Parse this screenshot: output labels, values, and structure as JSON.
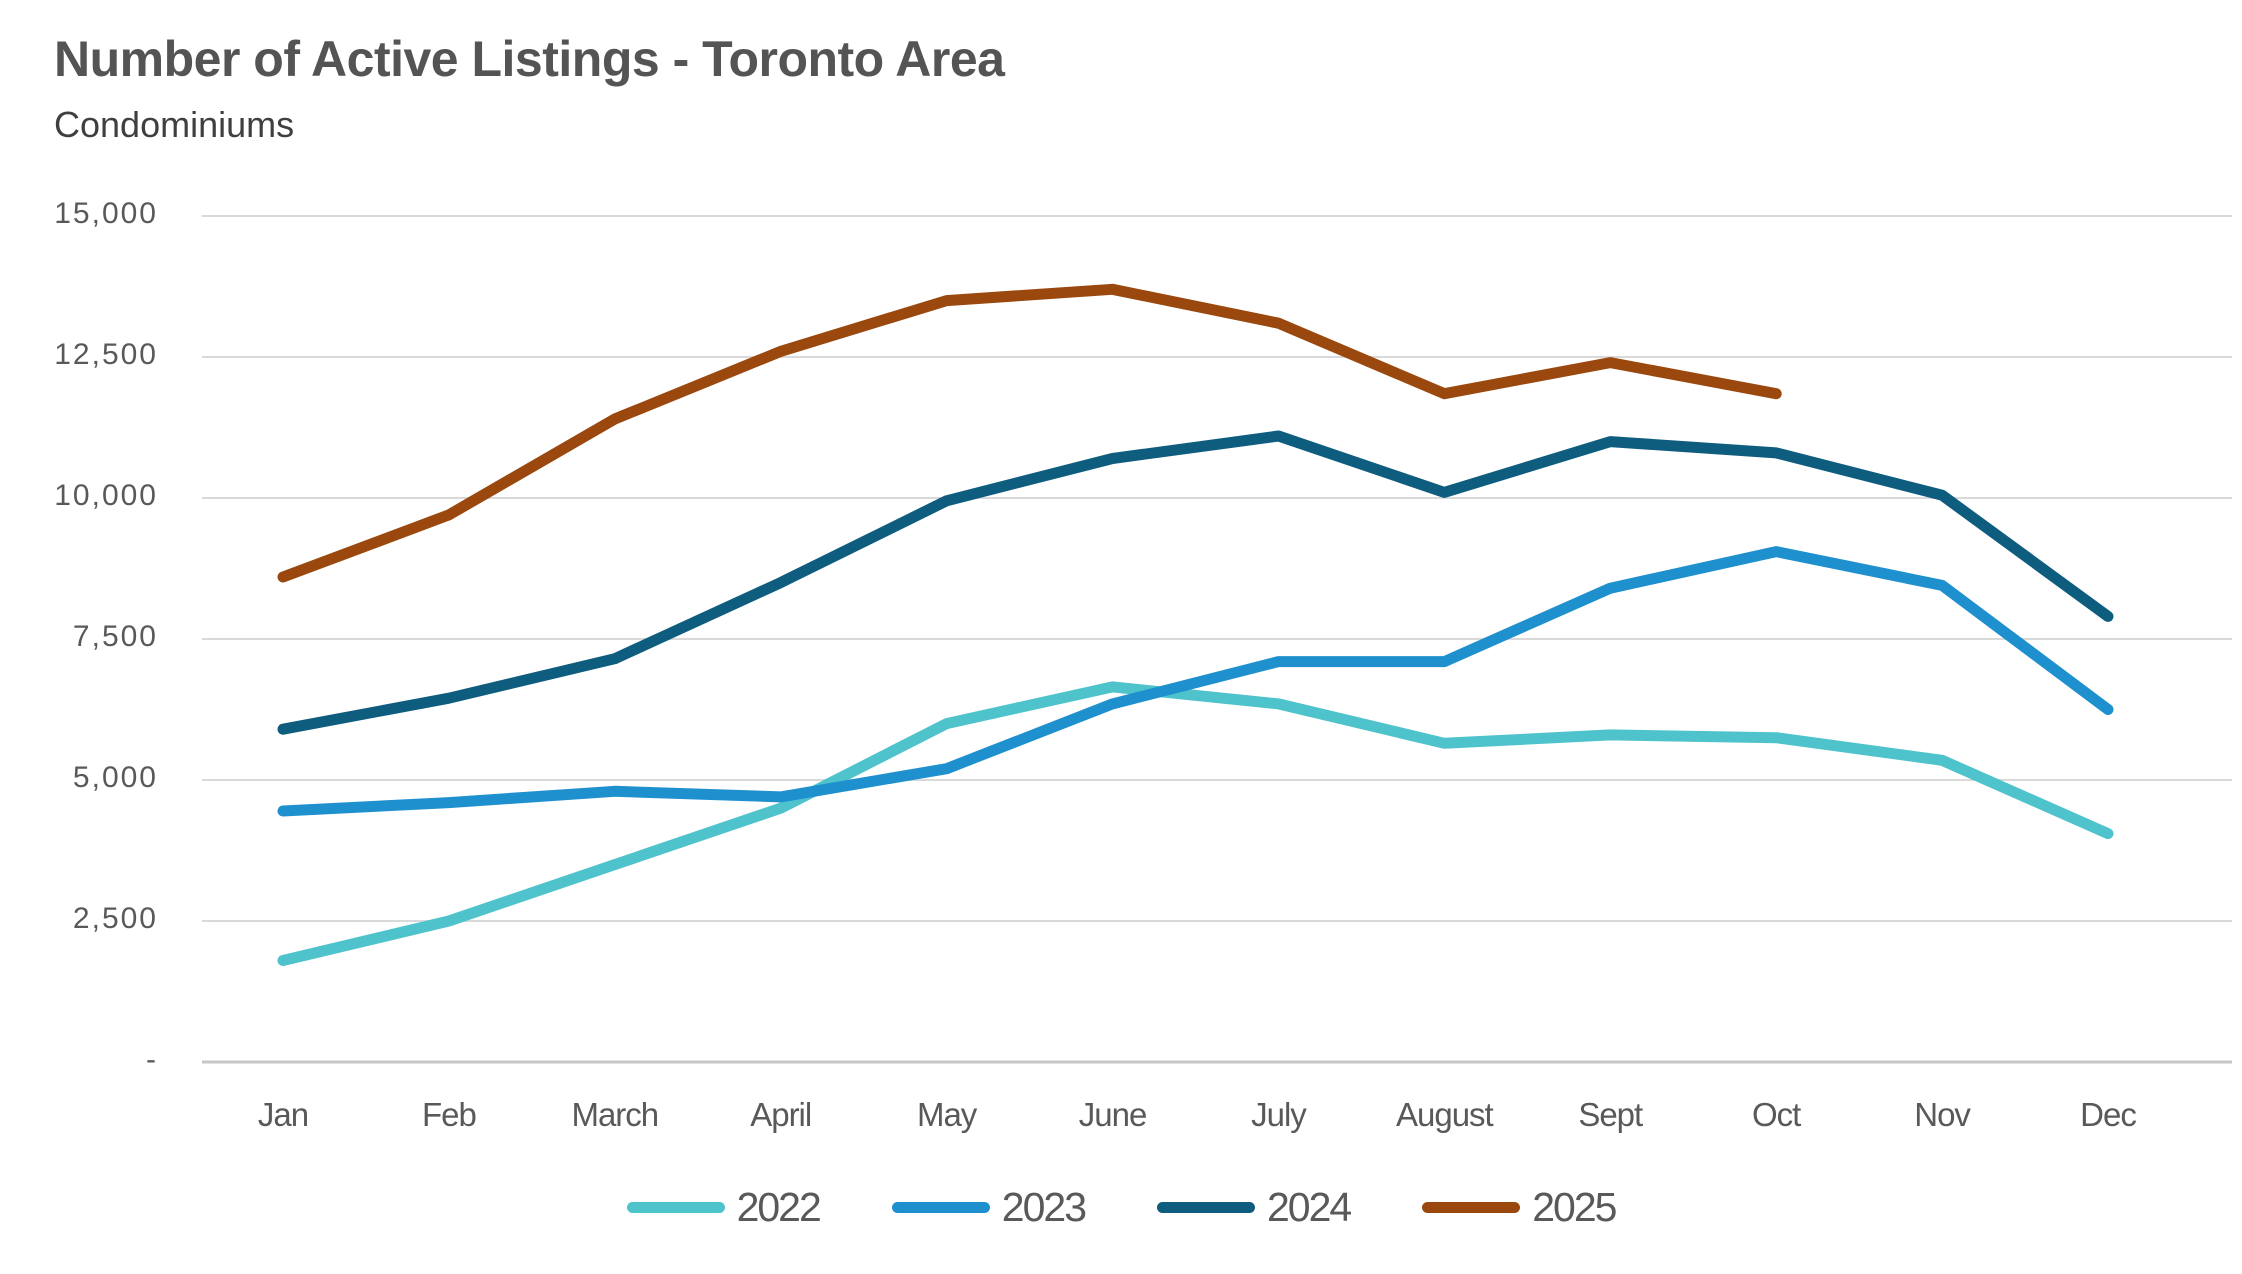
{
  "header": {
    "title": "Number of Active Listings - Toronto Area",
    "subtitle": "Condominiums"
  },
  "chart_data": {
    "type": "line",
    "title": "Number of Active Listings - Toronto Area",
    "subtitle": "Condominiums",
    "categories": [
      "Jan",
      "Feb",
      "March",
      "April",
      "May",
      "June",
      "July",
      "August",
      "Sept",
      "Oct",
      "Nov",
      "Dec"
    ],
    "y_tick_labels": [
      "15,000",
      "12,500",
      "10,000",
      "7,500",
      "5,000",
      "2,500",
      "-"
    ],
    "y_tick_values": [
      15000,
      12500,
      10000,
      7500,
      5000,
      2500,
      0
    ],
    "ylim": [
      0,
      15000
    ],
    "grid": true,
    "legend_position": "bottom",
    "gridline_color": "#d9d9d9",
    "axis_line_color": "#c6c6c6",
    "series": [
      {
        "name": "2022",
        "color": "#4fc3cb",
        "values": [
          1800,
          2500,
          3500,
          4500,
          6000,
          6650,
          6350,
          5650,
          5800,
          5750,
          5350,
          4050
        ]
      },
      {
        "name": "2023",
        "color": "#1f90ce",
        "values": [
          4450,
          4600,
          4800,
          4700,
          5200,
          6350,
          7100,
          7100,
          8400,
          9050,
          8450,
          6250
        ]
      },
      {
        "name": "2024",
        "color": "#0e5c7e",
        "values": [
          5900,
          6450,
          7150,
          8500,
          9950,
          10700,
          11100,
          10100,
          11000,
          10800,
          10050,
          7900
        ]
      },
      {
        "name": "2025",
        "color": "#9a480e",
        "values": [
          8600,
          9700,
          11400,
          12600,
          13500,
          13700,
          13100,
          11850,
          12400,
          11850,
          null,
          null
        ]
      }
    ]
  }
}
